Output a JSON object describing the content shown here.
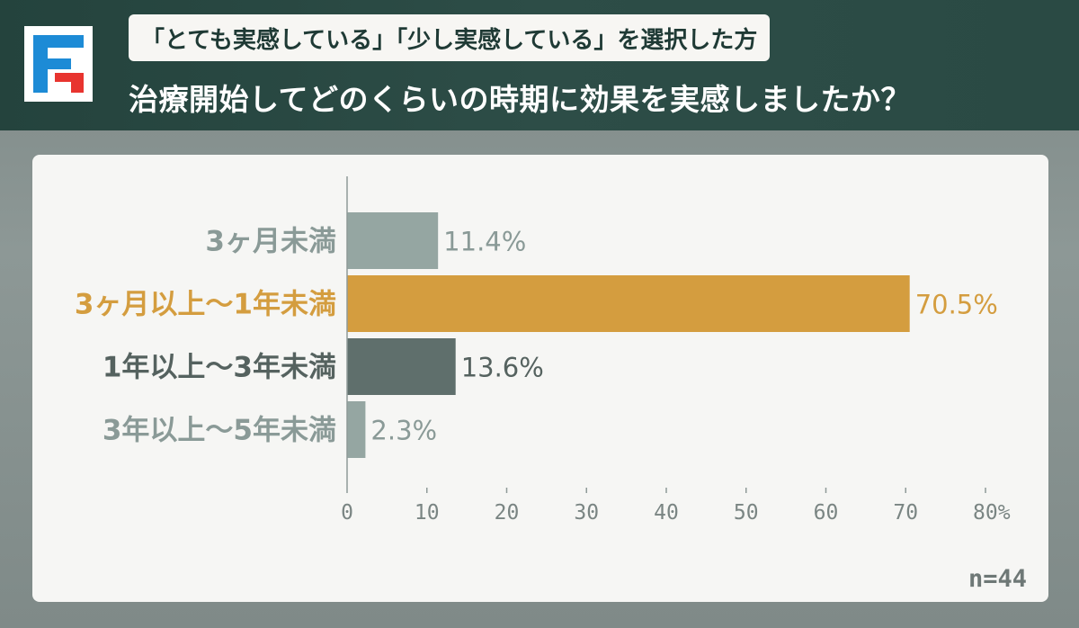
{
  "header": {
    "subtitle": "「とても実感している」「少し実感している」を選択した方",
    "title": "治療開始してどのくらいの時期に効果を実感しましたか？"
  },
  "colors": {
    "header_bg": "#2a4a44",
    "highlight": "#d49d3f",
    "bar_gray_light": "#95a6a2",
    "bar_gray_dark": "#5f6f6c",
    "logo_blue": "#1d8bd6",
    "logo_red": "#e8342f"
  },
  "chart_data": {
    "type": "bar",
    "orientation": "horizontal",
    "categories": [
      "3ヶ月未満",
      "3ヶ月以上〜1年未満",
      "1年以上〜3年未満",
      "3年以上〜5年未満"
    ],
    "values": [
      11.4,
      70.5,
      13.6,
      2.3
    ],
    "value_labels": [
      "11.4%",
      "70.5%",
      "13.6%",
      "2.3%"
    ],
    "xlim": [
      0,
      80
    ],
    "xticks": [
      "0",
      "10",
      "20",
      "30",
      "40",
      "50",
      "60",
      "70",
      "80%"
    ],
    "bar_colors": [
      "#95a6a2",
      "#d49d3f",
      "#5f6f6c",
      "#95a6a2"
    ],
    "label_colors": [
      "#8a9a97",
      "#d49d3f",
      "#55625f",
      "#8a9a97"
    ],
    "grid": false
  },
  "footer": {
    "n": "n=44"
  }
}
